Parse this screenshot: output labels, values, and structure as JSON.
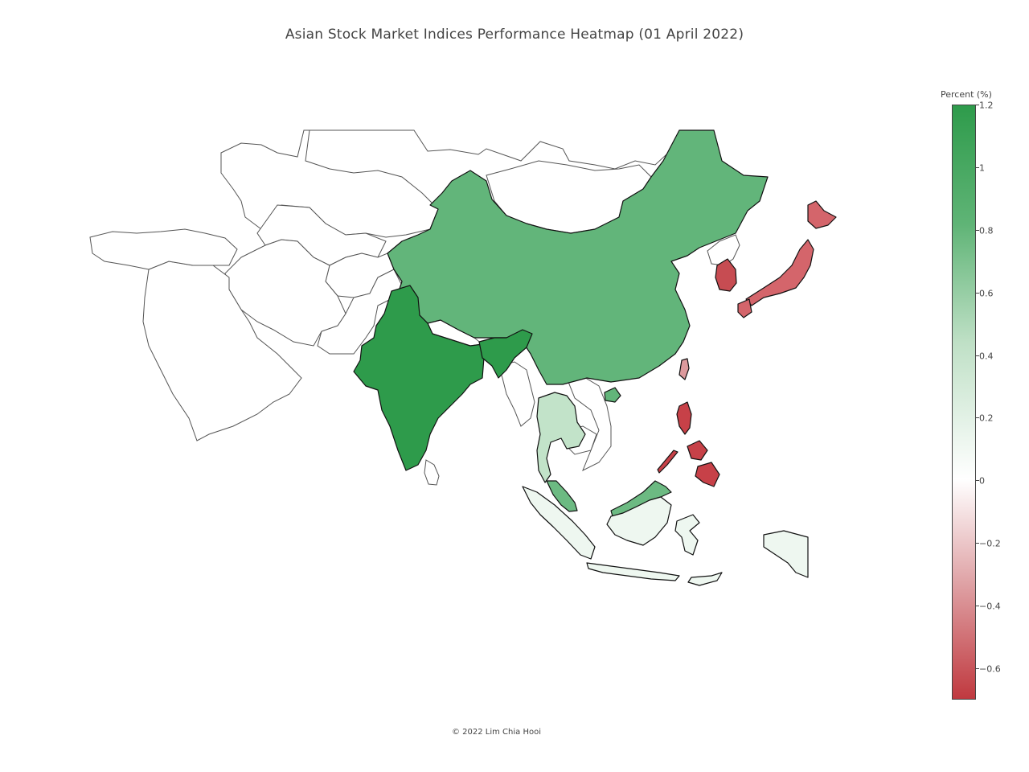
{
  "title": "Asian Stock Market Indices Performance Heatmap (01 April 2022)",
  "footer": "© 2022 Lim Chia Hooi",
  "colorbar": {
    "title": "Percent (%)",
    "min": -0.7,
    "max": 1.2,
    "ticks": [
      "1.2",
      "1",
      "0.8",
      "0.6",
      "0.4",
      "0.2",
      "0",
      "−0.2",
      "−0.4",
      "−0.6"
    ],
    "colors": {
      "low": "#c0393f",
      "mid": "#ffffff",
      "high": "#2e9b4b"
    }
  },
  "chart_data": {
    "type": "choropleth",
    "title": "Asian Stock Market Indices Performance Heatmap (01 April 2022)",
    "colorbar_title": "Percent (%)",
    "range": [
      -0.7,
      1.2
    ],
    "regions": [
      {
        "name": "India",
        "value": 1.2
      },
      {
        "name": "China",
        "value": 0.7
      },
      {
        "name": "Malaysia",
        "value": 0.75
      },
      {
        "name": "Thailand",
        "value": 0.3
      },
      {
        "name": "Indonesia",
        "value": 0.1
      },
      {
        "name": "Japan",
        "value": -0.55
      },
      {
        "name": "South Korea",
        "value": -0.6
      },
      {
        "name": "Taiwan",
        "value": -0.45
      },
      {
        "name": "Philippines",
        "value": -0.7
      }
    ]
  }
}
